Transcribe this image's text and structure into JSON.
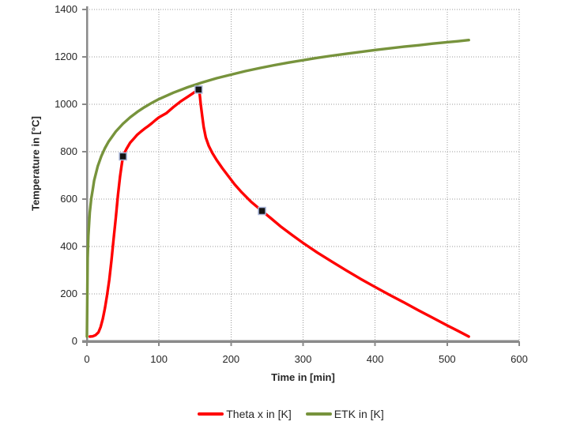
{
  "chart_data": {
    "type": "line",
    "title": "",
    "xlabel": "Time in [min]",
    "ylabel": "Temperature in [°C]",
    "xlim": [
      0,
      600
    ],
    "ylim": [
      0,
      1400
    ],
    "xticks": [
      0,
      100,
      200,
      300,
      400,
      500,
      600
    ],
    "yticks": [
      0,
      200,
      400,
      600,
      800,
      1000,
      1200,
      1400
    ],
    "grid": true,
    "gridline_color": "#999999",
    "axis_color": "#8a8a8a",
    "background": "#ffffff",
    "legend_position": "bottom",
    "series": [
      {
        "name": "Theta x in [K]",
        "color": "#FF0000",
        "points": [
          [
            4,
            20
          ],
          [
            8,
            21
          ],
          [
            12,
            26
          ],
          [
            16,
            38
          ],
          [
            19,
            60
          ],
          [
            22,
            95
          ],
          [
            25,
            140
          ],
          [
            28,
            195
          ],
          [
            31,
            260
          ],
          [
            34,
            340
          ],
          [
            37,
            430
          ],
          [
            40,
            520
          ],
          [
            43,
            615
          ],
          [
            46,
            695
          ],
          [
            48,
            740
          ],
          [
            50,
            780
          ],
          [
            53,
            800
          ],
          [
            55,
            812
          ],
          [
            60,
            838
          ],
          [
            65,
            855
          ],
          [
            70,
            872
          ],
          [
            75,
            885
          ],
          [
            80,
            897
          ],
          [
            85,
            908
          ],
          [
            90,
            920
          ],
          [
            95,
            933
          ],
          [
            100,
            945
          ],
          [
            110,
            962
          ],
          [
            120,
            988
          ],
          [
            130,
            1012
          ],
          [
            140,
            1032
          ],
          [
            148,
            1048
          ],
          [
            155,
            1062
          ],
          [
            156,
            1058
          ],
          [
            157,
            1030
          ],
          [
            158,
            1000
          ],
          [
            160,
            950
          ],
          [
            162,
            905
          ],
          [
            165,
            860
          ],
          [
            169,
            825
          ],
          [
            174,
            795
          ],
          [
            180,
            765
          ],
          [
            188,
            730
          ],
          [
            196,
            698
          ],
          [
            205,
            662
          ],
          [
            215,
            628
          ],
          [
            228,
            588
          ],
          [
            243,
            550
          ],
          [
            255,
            520
          ],
          [
            270,
            482
          ],
          [
            285,
            448
          ],
          [
            300,
            415
          ],
          [
            320,
            374
          ],
          [
            340,
            336
          ],
          [
            360,
            299
          ],
          [
            380,
            263
          ],
          [
            400,
            229
          ],
          [
            420,
            196
          ],
          [
            440,
            164
          ],
          [
            460,
            131
          ],
          [
            480,
            99
          ],
          [
            500,
            67
          ],
          [
            515,
            44
          ],
          [
            530,
            20
          ]
        ]
      },
      {
        "name": "ETK in [K]",
        "color": "#77933C",
        "points": [
          [
            0,
            20
          ],
          [
            1,
            349
          ],
          [
            2,
            445
          ],
          [
            4,
            544
          ],
          [
            6,
            603
          ],
          [
            8,
            639
          ],
          [
            10,
            678
          ],
          [
            15,
            739
          ],
          [
            20,
            781
          ],
          [
            25,
            815
          ],
          [
            30,
            842
          ],
          [
            40,
            885
          ],
          [
            50,
            918
          ],
          [
            60,
            945
          ],
          [
            70,
            968
          ],
          [
            80,
            988
          ],
          [
            90,
            1006
          ],
          [
            100,
            1022
          ],
          [
            120,
            1049
          ],
          [
            140,
            1072
          ],
          [
            160,
            1092
          ],
          [
            180,
            1110
          ],
          [
            200,
            1125
          ],
          [
            220,
            1140
          ],
          [
            240,
            1153
          ],
          [
            260,
            1165
          ],
          [
            280,
            1176
          ],
          [
            300,
            1186
          ],
          [
            320,
            1196
          ],
          [
            340,
            1205
          ],
          [
            360,
            1213
          ],
          [
            380,
            1221
          ],
          [
            400,
            1229
          ],
          [
            420,
            1236
          ],
          [
            440,
            1243
          ],
          [
            460,
            1249
          ],
          [
            480,
            1256
          ],
          [
            500,
            1262
          ],
          [
            515,
            1266
          ],
          [
            530,
            1271
          ]
        ]
      }
    ],
    "markers": {
      "on_series": "Theta x in [K]",
      "shape": "square",
      "size": 9,
      "fill": "#141414",
      "stroke": "#a9b6d9",
      "points": [
        [
          50,
          780
        ],
        [
          155,
          1062
        ],
        [
          243,
          550
        ]
      ]
    }
  }
}
